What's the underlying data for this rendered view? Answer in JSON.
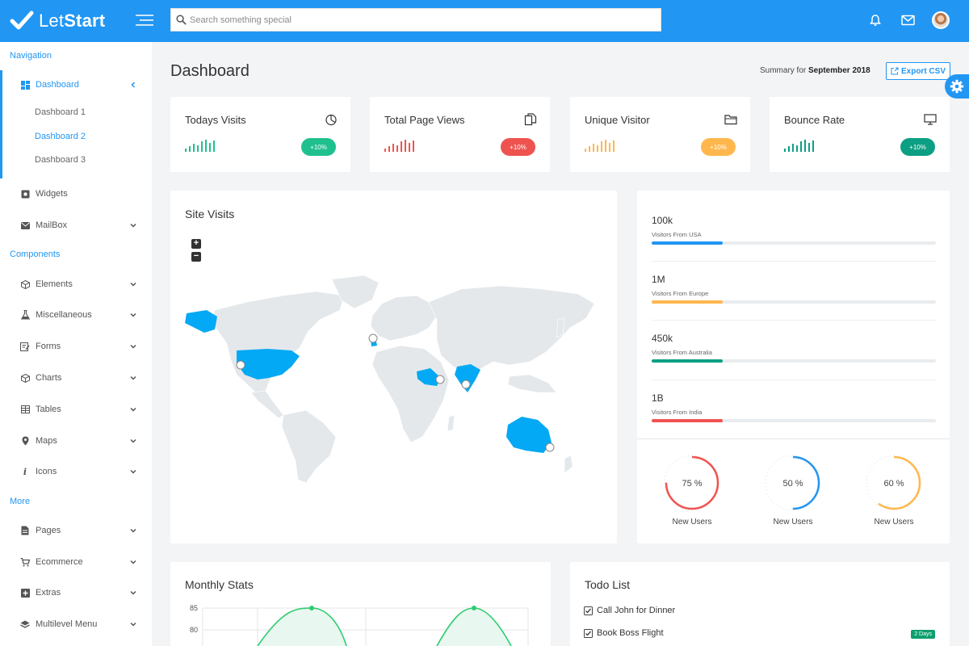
{
  "app": {
    "brand_light": "Let",
    "brand_bold": "Start"
  },
  "search": {
    "placeholder": "Search something special"
  },
  "topbar_icons": [
    "bell-icon",
    "mail-icon",
    "user-avatar"
  ],
  "sidebar": {
    "sections": [
      {
        "heading": "Navigation"
      },
      {
        "heading": "Components"
      },
      {
        "heading": "More"
      }
    ],
    "items": [
      {
        "label": "Dashboard",
        "icon": "grid-icon",
        "active": true
      },
      {
        "label": "Widgets",
        "icon": "widget-icon"
      },
      {
        "label": "MailBox",
        "icon": "mail-icon"
      },
      {
        "label": "Elements",
        "icon": "cube-icon"
      },
      {
        "label": "Miscellaneous",
        "icon": "flask-icon"
      },
      {
        "label": "Forms",
        "icon": "form-icon"
      },
      {
        "label": "Charts",
        "icon": "cube-icon"
      },
      {
        "label": "Tables",
        "icon": "table-icon"
      },
      {
        "label": "Maps",
        "icon": "map-pin-icon"
      },
      {
        "label": "Icons",
        "icon": "info-icon"
      },
      {
        "label": "Pages",
        "icon": "file-icon"
      },
      {
        "label": "Ecommerce",
        "icon": "cart-icon"
      },
      {
        "label": "Extras",
        "icon": "plus-box-icon"
      },
      {
        "label": "Multilevel Menu",
        "icon": "layers-icon"
      }
    ],
    "dashboard_sub": [
      "Dashboard 1",
      "Dashboard 2",
      "Dashboard 3"
    ]
  },
  "header": {
    "title": "Dashboard",
    "summary_prefix": "Summary for",
    "summary_period": "September 2018",
    "export_label": "Export CSV"
  },
  "stats": [
    {
      "title": "Todays Visits",
      "badge": "+10%",
      "color": "#1fc08e",
      "icon": "pie-chart-icon"
    },
    {
      "title": "Total Page Views",
      "badge": "+10%",
      "color": "#ef5350",
      "icon": "copy-icon"
    },
    {
      "title": "Unique Visitor",
      "badge": "+10%",
      "color": "#ffb74d",
      "icon": "folder-icon"
    },
    {
      "title": "Bounce Rate",
      "badge": "+10%",
      "color": "#0d9f83",
      "icon": "monitor-icon"
    }
  ],
  "site_visits": {
    "title": "Site Visits",
    "zoom_in": "+",
    "zoom_out": "−"
  },
  "visitors": [
    {
      "value": "100k",
      "label": "Visitors From USA",
      "progress": 0.25,
      "color": "#2196f3"
    },
    {
      "value": "1M",
      "label": "Visitors From Europe",
      "progress": 0.25,
      "color": "#ffb74d"
    },
    {
      "value": "450k",
      "label": "Visitors From Australia",
      "progress": 0.25,
      "color": "#0d9f83"
    },
    {
      "value": "1B",
      "label": "Visitors From India",
      "progress": 0.25,
      "color": "#ef5350"
    }
  ],
  "gauges": [
    {
      "percent": 75,
      "text": "75 %",
      "label": "New Users",
      "color": "#ef5350"
    },
    {
      "percent": 50,
      "text": "50 %",
      "label": "New Users",
      "color": "#2196f3"
    },
    {
      "percent": 60,
      "text": "60 %",
      "label": "New Users",
      "color": "#ffb74d"
    }
  ],
  "monthly_stats": {
    "title": "Monthly Stats",
    "y_ticks": [
      "85",
      "80"
    ]
  },
  "todo": {
    "title": "Todo List",
    "items": [
      {
        "text": "Call John for Dinner",
        "checked": true
      },
      {
        "text": "Book Boss Flight",
        "checked": true,
        "badge": "2 Days"
      }
    ]
  },
  "colors": {
    "primary": "#2196f3",
    "map_land": "#e4e8eb",
    "map_highlight": "#03a9f4"
  }
}
